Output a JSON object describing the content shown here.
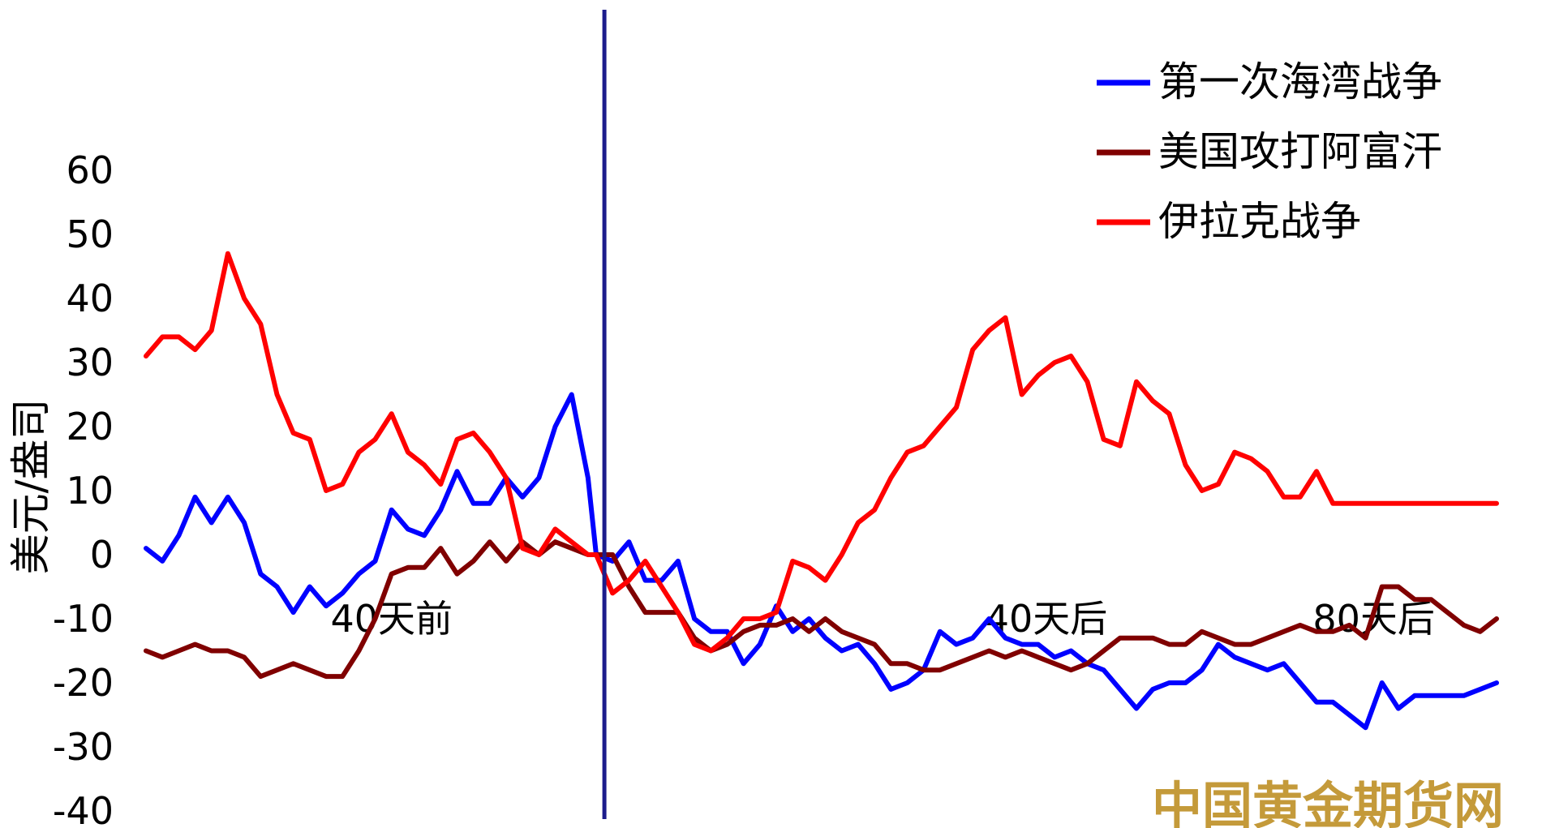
{
  "chart_data": {
    "type": "line",
    "title": "",
    "xlabel": "",
    "ylabel": "美元/盎司",
    "ylim": [
      -40,
      60
    ],
    "yticks": [
      60,
      50,
      40,
      30,
      20,
      10,
      0,
      -10,
      -20,
      -30,
      -40
    ],
    "xlim": [
      -55,
      110
    ],
    "x_annotations": [
      {
        "x": -25,
        "label": "40天前"
      },
      {
        "x": 55,
        "label": "40天后"
      },
      {
        "x": 95,
        "label": "80天后"
      }
    ],
    "event_line_x": 1,
    "event_line_color": "#1c1c8c",
    "grid": false,
    "legend_position": "top-right",
    "series": [
      {
        "name": "第一次海湾战争",
        "color": "#0000ff",
        "x": [
          -55,
          -53,
          -51,
          -49,
          -47,
          -45,
          -43,
          -41,
          -39,
          -37,
          -35,
          -33,
          -31,
          -29,
          -27,
          -25,
          -23,
          -21,
          -19,
          -17,
          -15,
          -13,
          -11,
          -9,
          -7,
          -5,
          -3,
          -1,
          0,
          2,
          4,
          6,
          8,
          10,
          12,
          14,
          16,
          18,
          20,
          22,
          24,
          26,
          28,
          30,
          32,
          34,
          36,
          38,
          40,
          42,
          44,
          46,
          48,
          50,
          52,
          54,
          56,
          58,
          60,
          62,
          64,
          66,
          68,
          70,
          72,
          74,
          76,
          78,
          80,
          82,
          84,
          86,
          88,
          90,
          92,
          94,
          96,
          98,
          100,
          102,
          104,
          106,
          108,
          110
        ],
        "values": [
          1,
          -1,
          3,
          9,
          5,
          9,
          5,
          -3,
          -5,
          -9,
          -5,
          -8,
          -6,
          -3,
          -1,
          7,
          4,
          3,
          7,
          13,
          8,
          8,
          12,
          9,
          12,
          20,
          25,
          12,
          0,
          -1,
          2,
          -4,
          -4,
          -1,
          -10,
          -12,
          -12,
          -17,
          -14,
          -8,
          -12,
          -10,
          -13,
          -15,
          -14,
          -17,
          -21,
          -20,
          -18,
          -12,
          -14,
          -13,
          -10,
          -13,
          -14,
          -14,
          -16,
          -15,
          -17,
          -18,
          -21,
          -24,
          -21,
          -20,
          -20,
          -18,
          -14,
          -16,
          -17,
          -18,
          -17,
          -20,
          -23,
          -23,
          -25,
          -27,
          -20,
          -24,
          -22,
          -22,
          -22,
          -22,
          -21,
          -20
        ]
      },
      {
        "name": "美国攻打阿富汗",
        "color": "#800000",
        "x": [
          -55,
          -53,
          -51,
          -49,
          -47,
          -45,
          -43,
          -41,
          -39,
          -37,
          -35,
          -33,
          -31,
          -29,
          -27,
          -25,
          -23,
          -21,
          -19,
          -17,
          -15,
          -13,
          -11,
          -9,
          -7,
          -5,
          -3,
          -1,
          0,
          2,
          4,
          6,
          8,
          10,
          12,
          14,
          16,
          18,
          20,
          22,
          24,
          26,
          28,
          30,
          32,
          34,
          36,
          38,
          40,
          42,
          44,
          46,
          48,
          50,
          52,
          54,
          56,
          58,
          60,
          62,
          64,
          66,
          68,
          70,
          72,
          74,
          76,
          78,
          80,
          82,
          84,
          86,
          88,
          90,
          92,
          94,
          96,
          98,
          100,
          102,
          104,
          106,
          108,
          110
        ],
        "values": [
          -15,
          -16,
          -15,
          -14,
          -15,
          -15,
          -16,
          -19,
          -18,
          -17,
          -18,
          -19,
          -19,
          -15,
          -10,
          -3,
          -2,
          -2,
          1,
          -3,
          -1,
          2,
          -1,
          2,
          0,
          2,
          1,
          0,
          0,
          0,
          -5,
          -9,
          -9,
          -9,
          -13,
          -15,
          -14,
          -12,
          -11,
          -11,
          -10,
          -12,
          -10,
          -12,
          -13,
          -14,
          -17,
          -17,
          -18,
          -18,
          -17,
          -16,
          -15,
          -16,
          -15,
          -16,
          -17,
          -18,
          -17,
          -15,
          -13,
          -13,
          -13,
          -14,
          -14,
          -12,
          -13,
          -14,
          -14,
          -13,
          -12,
          -11,
          -12,
          -12,
          -11,
          -13,
          -5,
          -5,
          -7,
          -7,
          -9,
          -11,
          -12,
          -10
        ]
      },
      {
        "name": "伊拉克战争",
        "color": "#ff0000",
        "x": [
          -55,
          -53,
          -51,
          -49,
          -47,
          -45,
          -43,
          -41,
          -39,
          -37,
          -35,
          -33,
          -31,
          -29,
          -27,
          -25,
          -23,
          -21,
          -19,
          -17,
          -15,
          -13,
          -11,
          -9,
          -7,
          -5,
          -3,
          -1,
          0,
          2,
          4,
          6,
          8,
          10,
          12,
          14,
          16,
          18,
          20,
          22,
          24,
          26,
          28,
          30,
          32,
          34,
          36,
          38,
          40,
          42,
          44,
          46,
          48,
          50,
          52,
          54,
          56,
          58,
          60,
          62,
          64,
          66,
          68,
          70,
          72,
          74,
          76,
          78,
          80,
          82,
          84,
          86,
          88,
          90,
          92,
          94,
          96,
          98,
          100,
          102,
          104,
          106,
          108,
          110
        ],
        "values": [
          31,
          34,
          34,
          32,
          35,
          47,
          40,
          36,
          25,
          19,
          18,
          10,
          11,
          16,
          18,
          22,
          16,
          14,
          11,
          18,
          19,
          16,
          12,
          1,
          0,
          4,
          2,
          0,
          0,
          -6,
          -4,
          -1,
          -5,
          -9,
          -14,
          -15,
          -13,
          -10,
          -10,
          -9,
          -1,
          -2,
          -4,
          0,
          5,
          7,
          12,
          16,
          17,
          20,
          23,
          32,
          35,
          37,
          25,
          28,
          30,
          31,
          27,
          18,
          17,
          27,
          24,
          22,
          14,
          10,
          11,
          16,
          15,
          13,
          9,
          9,
          13,
          8,
          8,
          8,
          8,
          8,
          8,
          8,
          8,
          8,
          8,
          8
        ]
      }
    ]
  },
  "watermark_text": "中国黄金期货网"
}
